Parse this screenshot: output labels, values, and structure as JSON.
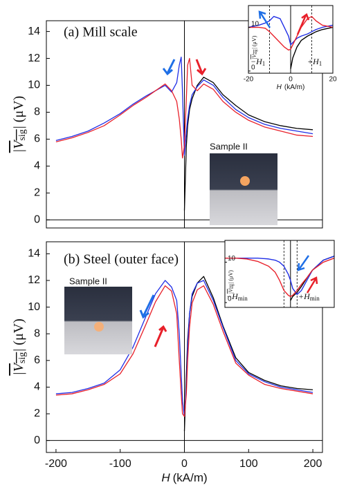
{
  "chart_data": [
    {
      "type": "line",
      "x": [
        -200,
        -175,
        -150,
        -125,
        -100,
        -80,
        -60,
        -45,
        -30,
        -20,
        -12,
        -8,
        -5,
        -3,
        0,
        3,
        5,
        8,
        12,
        20,
        30,
        45,
        60,
        80,
        100,
        125,
        150,
        175,
        200
      ],
      "series": [
        {
          "color": "#000000",
          "values": [
            null,
            null,
            null,
            null,
            null,
            null,
            null,
            null,
            null,
            null,
            null,
            null,
            null,
            null,
            0.7,
            5.5,
            7,
            8.2,
            9,
            10,
            10.6,
            10.2,
            9.3,
            8.5,
            7.8,
            7.3,
            7,
            6.8,
            6.7
          ]
        },
        {
          "color": "#1f2ee6",
          "values": [
            5.9,
            6.2,
            6.6,
            7.2,
            7.9,
            8.6,
            9.2,
            9.6,
            10,
            9.5,
            10.2,
            11.5,
            12.1,
            9.5,
            4.8,
            6.5,
            7.5,
            8.5,
            9.3,
            9.9,
            10.4,
            10,
            9.1,
            8.2,
            7.6,
            7.1,
            6.8,
            6.6,
            6.4
          ]
        },
        {
          "color": "#e8202a",
          "values": [
            5.8,
            6.1,
            6.5,
            7,
            7.8,
            8.5,
            9.1,
            9.6,
            10.1,
            9.6,
            8.8,
            7.5,
            6,
            4.6,
            5.5,
            9,
            11.5,
            12,
            10,
            9.6,
            10.1,
            9.7,
            8.8,
            8,
            7.4,
            6.9,
            6.6,
            6.3,
            6.2
          ]
        }
      ],
      "xlim": [
        -215,
        215
      ],
      "ylim": [
        -0.6,
        14.8
      ],
      "yticks": [
        0,
        2,
        4,
        6,
        8,
        10,
        12,
        14
      ],
      "y_label": {
        "text": "|V",
        "subscript": "sig",
        "unit": "| (μV)"
      },
      "annotations": [
        "(a) Mill scale",
        "Sample II"
      ],
      "hlines": [
        0
      ],
      "vlines": [
        0
      ]
    },
    {
      "type": "line",
      "x": [
        -200,
        -175,
        -150,
        -125,
        -100,
        -80,
        -60,
        -45,
        -30,
        -20,
        -12,
        -8,
        -5,
        -3,
        0,
        3,
        5,
        8,
        12,
        20,
        30,
        45,
        60,
        80,
        100,
        125,
        150,
        175,
        200
      ],
      "series": [
        {
          "color": "#000000",
          "values": [
            null,
            null,
            null,
            null,
            null,
            null,
            null,
            null,
            null,
            null,
            null,
            null,
            null,
            null,
            0.7,
            5,
            7.5,
            9.5,
            10.8,
            11.8,
            12.3,
            10.7,
            8.6,
            6.2,
            5.1,
            4.5,
            4.1,
            3.9,
            3.8
          ]
        },
        {
          "color": "#1f2ee6",
          "values": [
            3.5,
            3.6,
            3.9,
            4.3,
            5.3,
            7,
            9.3,
            11,
            12,
            11.5,
            10.5,
            8,
            5,
            3,
            1.8,
            4,
            7,
            9.5,
            11,
            11.8,
            12,
            10.5,
            8.5,
            6,
            5,
            4.4,
            4,
            3.8,
            3.6
          ]
        },
        {
          "color": "#e8202a",
          "values": [
            3.4,
            3.5,
            3.8,
            4.2,
            5,
            6.5,
            8.7,
            10.4,
            11.6,
            11.2,
            9.5,
            6,
            3.5,
            2,
            1.8,
            3.5,
            6,
            8.5,
            10.3,
            11.3,
            11.6,
            10.2,
            8.2,
            5.8,
            4.9,
            4.2,
            3.9,
            3.7,
            3.5
          ]
        }
      ],
      "xlim": [
        -215,
        215
      ],
      "ylim": [
        -0.9,
        14.9
      ],
      "yticks": [
        0,
        2,
        4,
        6,
        8,
        10,
        12,
        14
      ],
      "xticks": [
        -200,
        -100,
        0,
        100,
        200
      ],
      "x_label": {
        "text": "H",
        "unit": "(kA/m)"
      },
      "y_label": {
        "text": "|V",
        "subscript": "sig",
        "unit": "| (μV)"
      },
      "annotations": [
        "(b) Steel (outer face)",
        "Sample II"
      ],
      "hlines": [
        0
      ],
      "vlines": [
        0
      ]
    },
    {
      "type": "line",
      "x": [
        -20,
        -15,
        -12,
        -10,
        -8,
        -5,
        -3,
        -1,
        0,
        1,
        3,
        5,
        8,
        10,
        12,
        15,
        20
      ],
      "series": [
        {
          "color": "#000000",
          "values": [
            null,
            null,
            null,
            null,
            null,
            null,
            null,
            null,
            0.5,
            3,
            5.5,
            7,
            8,
            8.5,
            9,
            9.5,
            10
          ]
        },
        {
          "color": "#1f2ee6",
          "values": [
            10,
            10.5,
            11,
            11.5,
            12.5,
            12,
            10,
            8,
            6,
            6.5,
            7.5,
            8,
            8.5,
            9,
            9.5,
            10,
            10.5
          ]
        },
        {
          "color": "#e8202a",
          "values": [
            10,
            10,
            9.8,
            9,
            8,
            6.5,
            5.5,
            4.8,
            5,
            6,
            8,
            10,
            12,
            12.5,
            11.5,
            10.5,
            10
          ]
        }
      ],
      "xlim": [
        -20,
        20
      ],
      "ylim": [
        -0.5,
        15
      ],
      "yticks": [
        0,
        10
      ],
      "xticks": [
        -20,
        0,
        20
      ],
      "x_label": {
        "text": "H",
        "unit": "(kA/m)"
      },
      "y_label": {
        "text": "|V",
        "subscript": "sig",
        "unit": "| (μV)"
      },
      "annotations": [
        {
          "text": "−H",
          "subscript": "1"
        },
        {
          "text": "+H",
          "subscript": "1"
        }
      ],
      "vlines": [
        0
      ],
      "dashed_vlines": [
        -10,
        10
      ]
    },
    {
      "type": "line",
      "x": [
        -30,
        -25,
        -20,
        -15,
        -10,
        -7,
        -5,
        -3,
        -1,
        0,
        1,
        3,
        5,
        8,
        10,
        15,
        20
      ],
      "series": [
        {
          "color": "#000000",
          "values": [
            null,
            null,
            null,
            null,
            null,
            null,
            null,
            null,
            null,
            0.5,
            1.5,
            2.5,
            4,
            6.5,
            8,
            10.5,
            11.5
          ]
        },
        {
          "color": "#1f2ee6",
          "values": [
            11,
            11,
            11,
            11,
            10.8,
            10.5,
            10,
            9,
            7,
            5.5,
            3.5,
            2,
            3,
            6,
            8,
            10.5,
            11.5
          ]
        },
        {
          "color": "#e8202a",
          "values": [
            11,
            11,
            10.8,
            10.2,
            9,
            7.5,
            5.5,
            3,
            1.8,
            1.5,
            1.8,
            3,
            4.5,
            6.5,
            8,
            10,
            11
          ]
        }
      ],
      "xlim": [
        -30,
        20
      ],
      "ylim": [
        -1.2,
        15.4
      ],
      "yticks": [
        0,
        10
      ],
      "y_label": {
        "text": "|V",
        "subscript": "sig",
        "unit": "| (μV)"
      },
      "annotations": [
        {
          "text": "−H",
          "subscript": "min"
        },
        {
          "text": "+H",
          "subscript": "min"
        }
      ],
      "vlines": [
        0
      ],
      "dashed_vlines": [
        -3,
        3
      ]
    }
  ]
}
